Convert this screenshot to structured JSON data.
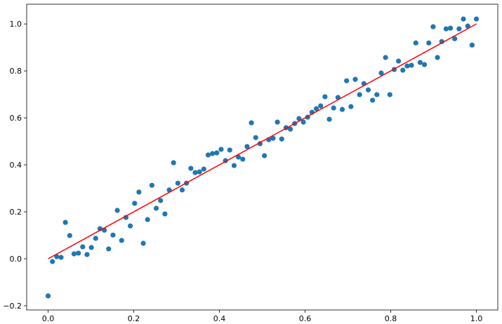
{
  "chart_data": {
    "type": "scatter",
    "xlim": [
      -0.05,
      1.05
    ],
    "ylim": [
      -0.218,
      1.084
    ],
    "xticks": [
      {
        "value": 0,
        "label": "0.0"
      },
      {
        "value": 0.2,
        "label": "0.2"
      },
      {
        "value": 0.4,
        "label": "0.4"
      },
      {
        "value": 0.6,
        "label": "0.6"
      },
      {
        "value": 0.8,
        "label": "0.8"
      },
      {
        "value": 1,
        "label": "1.0"
      }
    ],
    "yticks": [
      {
        "value": -0.2,
        "label": "−0.2"
      },
      {
        "value": 0,
        "label": "0.0"
      },
      {
        "value": 0.2,
        "label": "0.2"
      },
      {
        "value": 0.4,
        "label": "0.4"
      },
      {
        "value": 0.6,
        "label": "0.6"
      },
      {
        "value": 0.8,
        "label": "0.8"
      },
      {
        "value": 1,
        "label": "1.0"
      }
    ],
    "series": [
      {
        "type": "scatter",
        "color": "#1f77b4",
        "x": [
          0,
          0.0101,
          0.0202,
          0.0303,
          0.0404,
          0.0505,
          0.0606,
          0.0707,
          0.0808,
          0.0909,
          0.101,
          0.1111,
          0.1212,
          0.1313,
          0.1414,
          0.1515,
          0.1616,
          0.1717,
          0.1818,
          0.1919,
          0.202,
          0.2121,
          0.2222,
          0.2323,
          0.2424,
          0.2525,
          0.2626,
          0.2727,
          0.2828,
          0.2929,
          0.303,
          0.3131,
          0.3232,
          0.3333,
          0.3434,
          0.3535,
          0.3636,
          0.3737,
          0.3838,
          0.3939,
          0.404,
          0.4141,
          0.4242,
          0.4343,
          0.4444,
          0.4545,
          0.4646,
          0.4747,
          0.4848,
          0.4949,
          0.5051,
          0.5152,
          0.5253,
          0.5354,
          0.5455,
          0.5556,
          0.5657,
          0.5758,
          0.5859,
          0.596,
          0.6061,
          0.6162,
          0.6263,
          0.6364,
          0.6465,
          0.6566,
          0.6667,
          0.6768,
          0.6869,
          0.697,
          0.7071,
          0.7172,
          0.7273,
          0.7374,
          0.7475,
          0.7576,
          0.7677,
          0.7778,
          0.7879,
          0.798,
          0.8081,
          0.8182,
          0.8283,
          0.8384,
          0.8485,
          0.8586,
          0.8687,
          0.8788,
          0.8889,
          0.899,
          0.9091,
          0.9192,
          0.9293,
          0.9394,
          0.9495,
          0.9596,
          0.9697,
          0.9798,
          0.9899,
          1
        ],
        "values": [
          -0.158,
          -0.012,
          0.009,
          0.006,
          0.155,
          0.099,
          0.021,
          0.024,
          0.051,
          0.018,
          0.048,
          0.087,
          0.128,
          0.122,
          0.042,
          0.101,
          0.206,
          0.078,
          0.176,
          0.14,
          0.236,
          0.284,
          0.066,
          0.167,
          0.313,
          0.215,
          0.248,
          0.191,
          0.293,
          0.409,
          0.322,
          0.293,
          0.322,
          0.385,
          0.367,
          0.37,
          0.382,
          0.442,
          0.448,
          0.451,
          0.466,
          0.418,
          0.463,
          0.397,
          0.433,
          0.424,
          0.478,
          0.579,
          0.516,
          0.49,
          0.439,
          0.507,
          0.513,
          0.582,
          0.51,
          0.558,
          0.552,
          0.576,
          0.597,
          0.582,
          0.603,
          0.624,
          0.639,
          0.651,
          0.69,
          0.594,
          0.642,
          0.687,
          0.636,
          0.758,
          0.648,
          0.764,
          0.699,
          0.746,
          0.719,
          0.675,
          0.699,
          0.791,
          0.857,
          0.699,
          0.806,
          0.842,
          0.803,
          0.821,
          0.824,
          0.919,
          0.836,
          0.827,
          0.919,
          0.988,
          0.857,
          0.925,
          0.979,
          0.982,
          0.937,
          0.979,
          1.021,
          0.991,
          0.91,
          1.021
        ]
      },
      {
        "type": "line",
        "color": "#ff0000",
        "x": [
          0,
          1
        ],
        "values": [
          0,
          1
        ]
      }
    ]
  }
}
